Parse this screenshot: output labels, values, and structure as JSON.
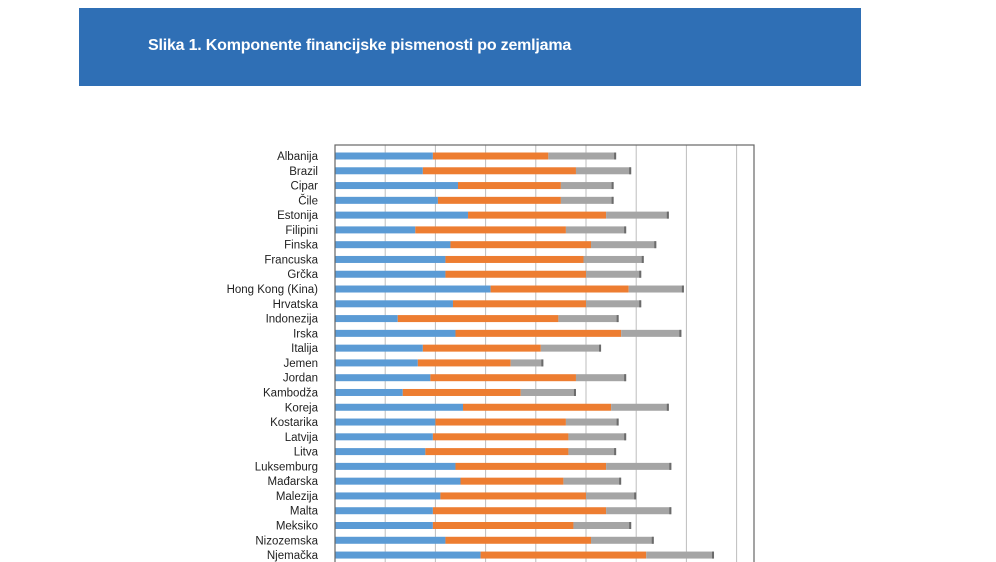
{
  "header": {
    "title": "Slika 1. Komponente financijske pismenosti po zemljama"
  },
  "chart_data": {
    "type": "bar",
    "orientation": "horizontal",
    "stacked": true,
    "title": "Slika 1. Komponente financijske pismenosti po zemljama",
    "xlim": [
      0,
      16
    ],
    "grid": true,
    "colors": [
      "#5B9BD5",
      "#ED7D31",
      "#A5A5A5"
    ],
    "categories": [
      "Albanija",
      "Brazil",
      "Cipar",
      "Čile",
      "Estonija",
      "Filipini",
      "Finska",
      "Francuska",
      "Grčka",
      "Hong Kong (Kina)",
      "Hrvatska",
      "Indonezija",
      "Irska",
      "Italija",
      "Jemen",
      "Jordan",
      "Kambodža",
      "Koreja",
      "Kostarika",
      "Latvija",
      "Litva",
      "Luksemburg",
      "Mađarska",
      "Malezija",
      "Malta",
      "Meksiko",
      "Nizozemska",
      "Njemačka"
    ],
    "series": [
      {
        "values": [
          3.9,
          3.5,
          4.9,
          4.1,
          5.3,
          3.2,
          4.6,
          4.4,
          4.4,
          6.2,
          4.7,
          2.5,
          4.8,
          3.5,
          3.3,
          3.8,
          2.7,
          5.1,
          4.0,
          3.9,
          3.6,
          4.8,
          5.0,
          4.2,
          3.9,
          3.9,
          4.4,
          5.8
        ]
      },
      {
        "values": [
          4.6,
          6.1,
          4.1,
          4.9,
          5.5,
          6.0,
          5.6,
          5.5,
          5.6,
          5.5,
          5.3,
          6.4,
          6.6,
          4.7,
          3.7,
          5.8,
          4.7,
          5.9,
          5.2,
          5.4,
          5.7,
          6.0,
          4.1,
          5.8,
          6.9,
          5.6,
          5.8,
          6.6
        ]
      },
      {
        "values": [
          2.7,
          2.2,
          2.1,
          2.1,
          2.5,
          2.4,
          2.6,
          2.4,
          2.2,
          2.2,
          2.2,
          2.4,
          2.4,
          2.4,
          1.3,
          2.0,
          2.2,
          2.3,
          2.1,
          2.3,
          1.9,
          2.6,
          2.3,
          2.0,
          2.6,
          2.3,
          2.5,
          2.7
        ]
      }
    ]
  }
}
